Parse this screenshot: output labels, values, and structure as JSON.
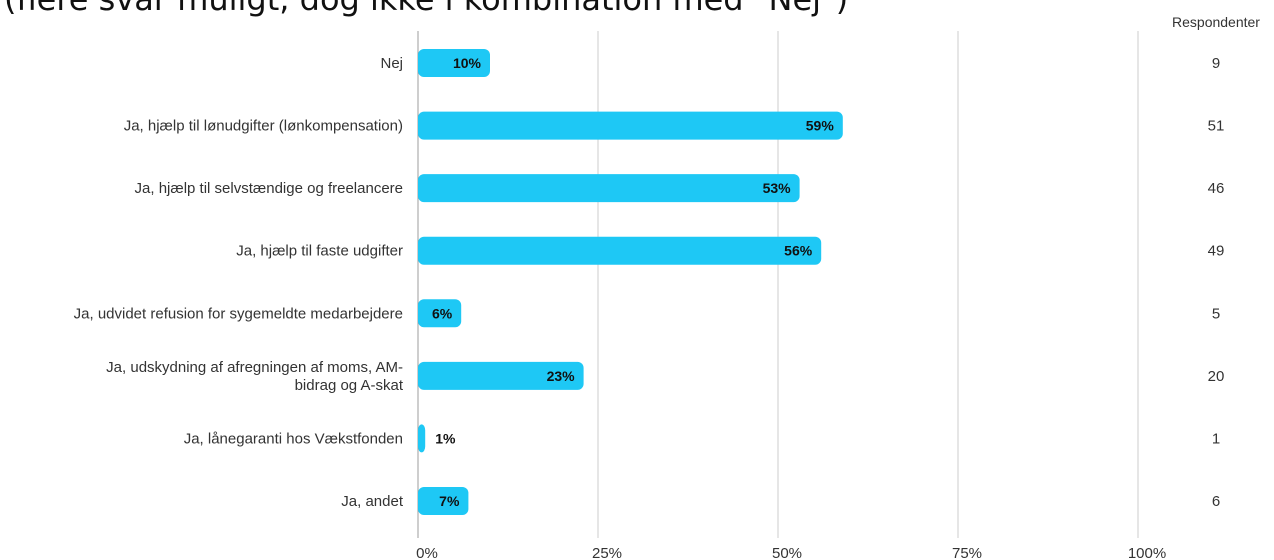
{
  "title": "(flere svar muligt, dog ikke i kombination med \"Nej\")",
  "colors": {
    "bar": "#1ec8f5",
    "grid": "#cccccc"
  },
  "chart_data": {
    "type": "bar",
    "orientation": "horizontal",
    "categories": [
      [
        "Nej"
      ],
      [
        "Ja, hjælp til lønudgifter (lønkompensation)"
      ],
      [
        "Ja, hjælp til selvstændige og freelancere"
      ],
      [
        "Ja, hjælp til faste udgifter"
      ],
      [
        "Ja, udvidet refusion for sygemeldte medarbejdere"
      ],
      [
        "Ja, udskydning af afregningen af moms, AM-",
        "bidrag og A-skat"
      ],
      [
        "Ja, lånegaranti hos Vækstfonden"
      ],
      [
        "Ja, andet"
      ]
    ],
    "values": [
      10,
      59,
      53,
      56,
      6,
      23,
      1,
      7
    ],
    "value_labels": [
      "10%",
      "59%",
      "53%",
      "56%",
      "6%",
      "23%",
      "1%",
      "7%"
    ],
    "respondents_header": "Respondenter",
    "respondents": [
      9,
      51,
      46,
      49,
      5,
      20,
      1,
      6
    ],
    "xlim": [
      0,
      100
    ],
    "xticks": [
      0,
      25,
      50,
      75,
      100
    ],
    "xtick_labels": [
      "0%",
      "25%",
      "50%",
      "75%",
      "100%"
    ],
    "grid": true
  }
}
